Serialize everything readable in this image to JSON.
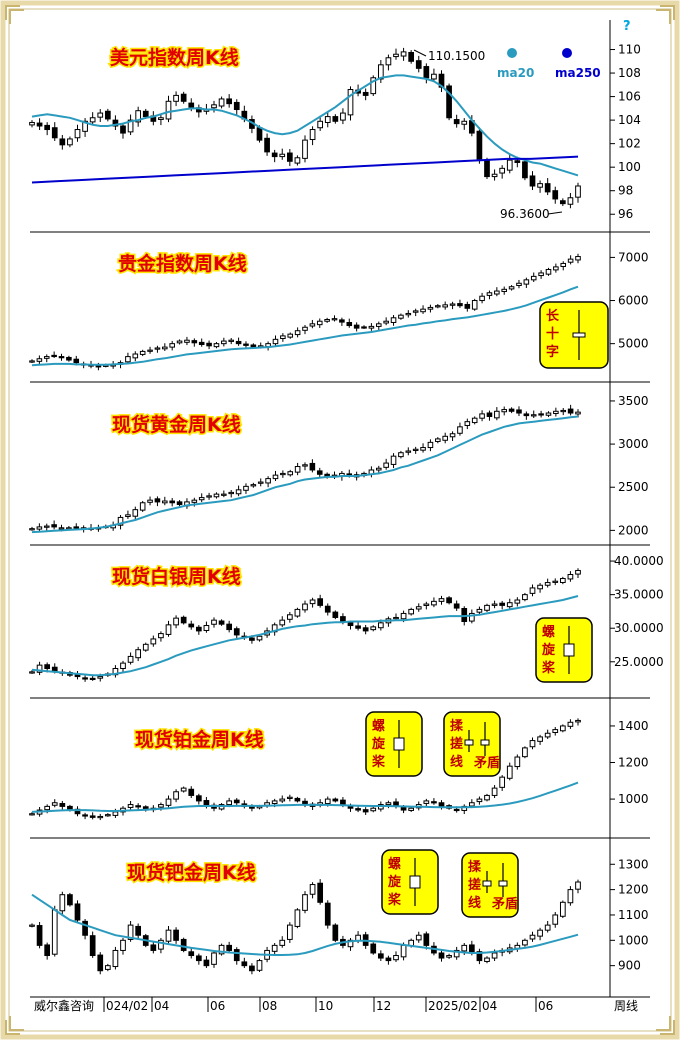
{
  "footer": {
    "source": "威尔鑫咨询",
    "period": "周线",
    "help_icon": "question-mark-icon",
    "x_labels": [
      "024/02",
      "04",
      "06",
      "08",
      "10",
      "12",
      "2025/02",
      "04",
      "06"
    ]
  },
  "colors": {
    "ma20": "#2a9bbf",
    "ma250": "#0000cc",
    "title": "#e00000",
    "title_outline": "#ffe600",
    "badge_fill": "#ffff00",
    "candle": "#000000",
    "frame": "#e8d9a8"
  },
  "chart_data": [
    {
      "id": "usd",
      "type": "candlestick",
      "title": "美元指数周K线",
      "y_ticks": [
        "110",
        "108",
        "106",
        "104",
        "102",
        "100",
        "98",
        "96"
      ],
      "ylim": [
        95,
        112
      ],
      "annotations": {
        "high": "110.1500",
        "low": "96.3600"
      },
      "legend": {
        "ma20": "ma20",
        "ma250": "ma250"
      },
      "closes": [
        103.8,
        103.5,
        103.2,
        102.5,
        101.9,
        102.4,
        103.2,
        103.9,
        104.2,
        104.6,
        104.1,
        103.5,
        102.9,
        104.0,
        104.8,
        104.3,
        103.9,
        104.2,
        105.6,
        106.1,
        105.6,
        105.1,
        104.7,
        104.9,
        105.3,
        105.8,
        105.4,
        104.9,
        104.1,
        103.3,
        102.3,
        101.3,
        100.9,
        101.1,
        100.5,
        100.8,
        102.3,
        103.2,
        103.9,
        104.3,
        103.9,
        104.6,
        106.6,
        106.3,
        106.1,
        107.6,
        108.7,
        109.3,
        109.6,
        109.8,
        109.0,
        108.4,
        107.6,
        107.9,
        106.8,
        104.2,
        103.7,
        103.9,
        102.9,
        100.7,
        99.2,
        99.4,
        99.9,
        100.6,
        100.4,
        99.1,
        98.4,
        98.6,
        97.9,
        97.3,
        96.9,
        97.4,
        98.4
      ],
      "ma20": [
        104.3,
        104.4,
        104.5,
        104.4,
        104.3,
        104.2,
        104.0,
        103.8,
        103.6,
        103.5,
        103.5,
        103.6,
        103.7,
        103.9,
        104.0,
        104.2,
        104.3,
        104.5,
        104.7,
        104.8,
        104.9,
        105.0,
        105.0,
        104.9,
        104.9,
        104.8,
        104.6,
        104.4,
        104.1,
        103.8,
        103.4,
        103.1,
        102.9,
        102.8,
        102.9,
        103.1,
        103.5,
        103.9,
        104.3,
        104.7,
        105.1,
        105.6,
        106.1,
        106.5,
        106.9,
        107.3,
        107.6,
        107.7,
        107.8,
        107.8,
        107.7,
        107.6,
        107.5,
        107.3,
        106.9,
        106.3,
        105.6,
        104.8,
        104.0,
        103.3,
        102.6,
        102.0,
        101.5,
        101.1,
        100.8,
        100.6,
        100.4,
        100.3,
        100.1,
        99.9,
        99.7,
        99.5,
        99.3
      ],
      "ma250": [
        98.7,
        98.8,
        98.9,
        99.0,
        99.1,
        99.2,
        99.3,
        99.4,
        99.5,
        99.6,
        99.7,
        99.8,
        99.9,
        100.0,
        100.1,
        100.2,
        100.3,
        100.4,
        100.5,
        100.6,
        100.7,
        100.7,
        100.8,
        100.9
      ]
    },
    {
      "id": "gold-index",
      "type": "candlestick",
      "title": "贵金指数周K线",
      "y_ticks": [
        "7000",
        "6000",
        "5000"
      ],
      "ylim": [
        4250,
        7450
      ],
      "badge": "长十字",
      "closes": [
        4600,
        4650,
        4700,
        4720,
        4680,
        4620,
        4560,
        4520,
        4480,
        4460,
        4500,
        4520,
        4560,
        4700,
        4760,
        4820,
        4850,
        4900,
        4920,
        5000,
        5060,
        5080,
        5020,
        4980,
        4950,
        5000,
        5060,
        5080,
        5000,
        4960,
        4920,
        4950,
        5000,
        5100,
        5180,
        5220,
        5300,
        5380,
        5460,
        5520,
        5560,
        5580,
        5500,
        5420,
        5360,
        5380,
        5400,
        5460,
        5520,
        5600,
        5660,
        5700,
        5760,
        5800,
        5840,
        5880,
        5900,
        5920,
        5880,
        5820,
        6000,
        6100,
        6180,
        6220,
        6260,
        6320,
        6400,
        6480,
        6560,
        6640,
        6720,
        6780,
        6860,
        6960,
        7020
      ],
      "ma20": [
        4500,
        4510,
        4520,
        4530,
        4530,
        4530,
        4520,
        4520,
        4510,
        4510,
        4510,
        4520,
        4530,
        4540,
        4560,
        4580,
        4610,
        4640,
        4660,
        4690,
        4720,
        4750,
        4770,
        4790,
        4810,
        4830,
        4850,
        4870,
        4880,
        4890,
        4900,
        4910,
        4920,
        4940,
        4960,
        4980,
        5010,
        5040,
        5070,
        5100,
        5130,
        5160,
        5190,
        5210,
        5230,
        5250,
        5270,
        5300,
        5330,
        5360,
        5390,
        5420,
        5440,
        5470,
        5490,
        5520,
        5540,
        5570,
        5590,
        5610,
        5640,
        5670,
        5700,
        5730,
        5760,
        5800,
        5840,
        5890,
        5950,
        6010,
        6070,
        6130,
        6190,
        6260,
        6320
      ]
    },
    {
      "id": "spot-gold",
      "type": "candlestick",
      "title": "现货黄金周K线",
      "y_ticks": [
        "3500",
        "3000",
        "2500",
        "2000"
      ],
      "ylim": [
        1900,
        3650
      ],
      "closes": [
        2020,
        2040,
        2050,
        2040,
        2030,
        2030,
        2040,
        2030,
        2020,
        2030,
        2040,
        2060,
        2150,
        2180,
        2240,
        2320,
        2350,
        2330,
        2340,
        2320,
        2300,
        2330,
        2350,
        2380,
        2400,
        2420,
        2420,
        2440,
        2470,
        2510,
        2530,
        2560,
        2600,
        2640,
        2660,
        2680,
        2740,
        2760,
        2700,
        2650,
        2620,
        2640,
        2660,
        2640,
        2620,
        2660,
        2700,
        2720,
        2780,
        2860,
        2900,
        2920,
        2940,
        2960,
        3020,
        3060,
        3090,
        3120,
        3200,
        3260,
        3300,
        3350,
        3320,
        3380,
        3400,
        3380,
        3360,
        3330,
        3340,
        3350,
        3360,
        3380,
        3390,
        3360,
        3370
      ],
      "ma20": [
        1980,
        1985,
        1990,
        1995,
        2000,
        2005,
        2010,
        2015,
        2020,
        2030,
        2040,
        2060,
        2080,
        2100,
        2120,
        2150,
        2180,
        2210,
        2230,
        2250,
        2270,
        2290,
        2300,
        2310,
        2320,
        2330,
        2340,
        2350,
        2370,
        2390,
        2410,
        2440,
        2470,
        2500,
        2520,
        2540,
        2570,
        2590,
        2600,
        2610,
        2620,
        2620,
        2630,
        2630,
        2630,
        2640,
        2650,
        2660,
        2680,
        2700,
        2730,
        2750,
        2780,
        2810,
        2840,
        2870,
        2910,
        2950,
        2990,
        3030,
        3070,
        3110,
        3140,
        3170,
        3200,
        3220,
        3240,
        3250,
        3260,
        3270,
        3280,
        3290,
        3300,
        3310,
        3320
      ]
    },
    {
      "id": "spot-silver",
      "type": "candlestick",
      "title": "现货白银周K线",
      "y_ticks": [
        "40.0000",
        "35.0000",
        "30.0000",
        "25.0000"
      ],
      "ylim": [
        20.5,
        41.5
      ],
      "badge": "螺旋桨",
      "closes": [
        23.5,
        24.5,
        24.0,
        23.6,
        23.4,
        23.0,
        22.8,
        22.6,
        22.5,
        22.8,
        23.2,
        24.0,
        24.8,
        25.8,
        26.8,
        27.6,
        28.4,
        29.2,
        30.5,
        31.5,
        30.8,
        30.2,
        29.6,
        30.4,
        31.2,
        30.6,
        29.8,
        29.0,
        28.6,
        28.2,
        28.8,
        29.6,
        30.5,
        31.2,
        32.0,
        32.8,
        33.6,
        34.2,
        33.4,
        32.4,
        31.6,
        31.0,
        30.4,
        30.0,
        29.6,
        30.2,
        30.8,
        31.4,
        31.6,
        32.2,
        32.8,
        33.2,
        33.6,
        34.0,
        34.4,
        33.8,
        33.0,
        31.0,
        32.2,
        32.8,
        33.4,
        33.6,
        33.4,
        33.8,
        34.2,
        35.0,
        36.0,
        36.4,
        36.8,
        37.0,
        37.4,
        38.0,
        38.6
      ],
      "ma20": [
        23.8,
        23.7,
        23.6,
        23.5,
        23.4,
        23.3,
        23.2,
        23.1,
        23.0,
        23.0,
        23.1,
        23.2,
        23.4,
        23.6,
        23.9,
        24.2,
        24.6,
        25.0,
        25.4,
        25.9,
        26.3,
        26.7,
        27.0,
        27.3,
        27.6,
        27.9,
        28.2,
        28.4,
        28.6,
        28.8,
        29.0,
        29.3,
        29.6,
        29.9,
        30.1,
        30.3,
        30.4,
        30.6,
        30.7,
        30.8,
        30.9,
        30.9,
        31.0,
        31.0,
        31.0,
        31.0,
        31.1,
        31.1,
        31.2,
        31.2,
        31.3,
        31.4,
        31.5,
        31.6,
        31.7,
        31.8,
        31.8,
        31.8,
        31.9,
        32.0,
        32.2,
        32.4,
        32.6,
        32.8,
        33.0,
        33.2,
        33.4,
        33.6,
        33.8,
        34.0,
        34.2,
        34.5,
        34.8
      ]
    },
    {
      "id": "spot-platinum",
      "type": "candlestick",
      "title": "现货铂金周K线",
      "y_ticks": [
        "1400",
        "1200",
        "1000"
      ],
      "ylim": [
        820,
        1520
      ],
      "badges": [
        "螺旋桨",
        "揉搓线矛盾"
      ],
      "closes": [
        920,
        940,
        960,
        980,
        960,
        940,
        920,
        910,
        900,
        905,
        915,
        930,
        950,
        970,
        960,
        940,
        950,
        970,
        1000,
        1040,
        1060,
        1020,
        990,
        960,
        950,
        970,
        990,
        980,
        960,
        950,
        960,
        980,
        990,
        1000,
        1010,
        990,
        970,
        960,
        980,
        1000,
        990,
        970,
        950,
        940,
        930,
        950,
        970,
        980,
        960,
        940,
        950,
        970,
        990,
        980,
        960,
        950,
        940,
        960,
        980,
        1000,
        1020,
        1060,
        1120,
        1180,
        1230,
        1280,
        1320,
        1340,
        1360,
        1380,
        1400,
        1420,
        1430
      ],
      "ma20": [
        930,
        932,
        934,
        936,
        938,
        940,
        940,
        940,
        938,
        936,
        935,
        935,
        936,
        938,
        940,
        942,
        944,
        947,
        950,
        954,
        958,
        960,
        962,
        962,
        962,
        962,
        962,
        963,
        963,
        963,
        963,
        964,
        965,
        966,
        967,
        968,
        968,
        968,
        968,
        968,
        967,
        966,
        965,
        964,
        963,
        962,
        962,
        962,
        961,
        960,
        959,
        958,
        957,
        956,
        955,
        955,
        955,
        955,
        956,
        958,
        961,
        965,
        970,
        976,
        984,
        994,
        1005,
        1018,
        1032,
        1046,
        1060,
        1075,
        1090
      ]
    },
    {
      "id": "spot-palladium",
      "type": "candlestick",
      "title": "现货钯金周K线",
      "y_ticks": [
        "1300",
        "1200",
        "1100",
        "1000",
        "900"
      ],
      "ylim": [
        800,
        1380
      ],
      "badges": [
        "螺旋桨",
        "揉搓线矛盾"
      ],
      "closes": [
        1060,
        980,
        940,
        1120,
        1180,
        1140,
        1080,
        1020,
        940,
        880,
        900,
        960,
        1000,
        1060,
        1020,
        980,
        960,
        1000,
        1040,
        1000,
        960,
        940,
        920,
        900,
        950,
        980,
        960,
        920,
        900,
        880,
        920,
        960,
        980,
        1000,
        1060,
        1120,
        1180,
        1220,
        1150,
        1060,
        1000,
        980,
        1000,
        1020,
        980,
        950,
        930,
        920,
        940,
        980,
        1000,
        1020,
        980,
        950,
        930,
        940,
        960,
        980,
        950,
        920,
        930,
        950,
        960,
        970,
        980,
        1000,
        1020,
        1040,
        1060,
        1100,
        1150,
        1200,
        1230
      ],
      "ma20": [
        1180,
        1160,
        1140,
        1120,
        1100,
        1080,
        1070,
        1060,
        1050,
        1040,
        1030,
        1020,
        1015,
        1010,
        1005,
        1000,
        995,
        990,
        985,
        980,
        975,
        970,
        966,
        962,
        958,
        955,
        952,
        950,
        948,
        946,
        944,
        943,
        942,
        942,
        943,
        945,
        950,
        958,
        968,
        978,
        986,
        992,
        996,
        998,
        998,
        996,
        994,
        990,
        986,
        982,
        978,
        974,
        970,
        966,
        962,
        958,
        955,
        952,
        950,
        950,
        952,
        955,
        958,
        962,
        966,
        970,
        975,
        982,
        990,
        998,
        1006,
        1014,
        1022
      ]
    }
  ]
}
